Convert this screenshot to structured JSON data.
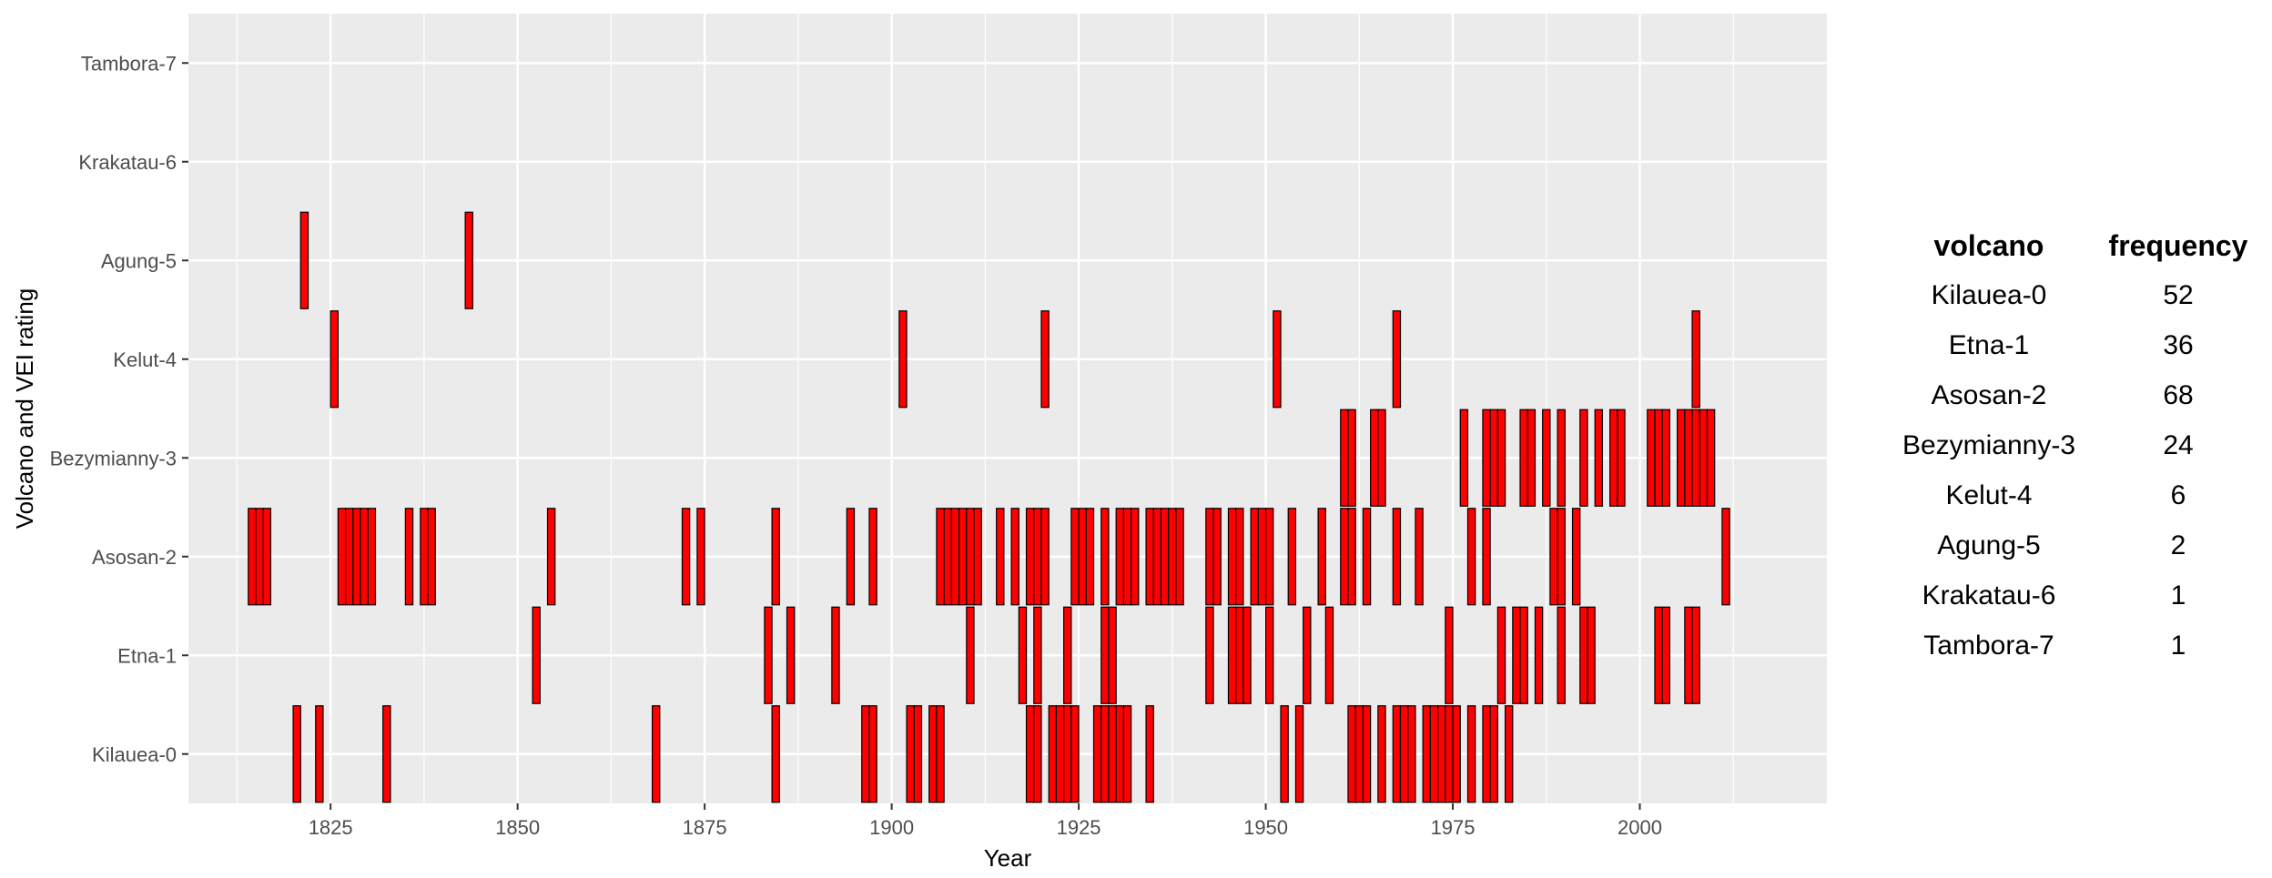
{
  "chart_data": {
    "type": "bar",
    "xlabel": "Year",
    "ylabel": "Volcano and VEI rating",
    "xlim": [
      1806,
      2025
    ],
    "x_ticks": [
      1825,
      1850,
      1875,
      1900,
      1925,
      1950,
      1975,
      2000
    ],
    "categories": [
      "Kilauea-0",
      "Etna-1",
      "Asosan-2",
      "Bezymianny-3",
      "Kelut-4",
      "Agung-5",
      "Krakatau-6",
      "Tambora-7"
    ],
    "bar_fill": "#ff0000",
    "bar_stroke": "#000000",
    "panel_bg": "#ebebeb",
    "grid_color": "#ffffff",
    "series": [
      {
        "category": "Kilauea-0",
        "years": [
          1820,
          1823,
          1832,
          1868,
          1884,
          1896,
          1897,
          1902,
          1903,
          1905,
          1906,
          1918,
          1919,
          1921,
          1922,
          1923,
          1924,
          1927,
          1928,
          1929,
          1930,
          1931,
          1934,
          1952,
          1954,
          1961,
          1962,
          1963,
          1965,
          1967,
          1968,
          1969,
          1971,
          1972,
          1973,
          1974,
          1975,
          1977,
          1979,
          1980,
          1982
        ]
      },
      {
        "category": "Etna-1",
        "years": [
          1852,
          1883,
          1886,
          1892,
          1910,
          1917,
          1919,
          1923,
          1928,
          1929,
          1942,
          1945,
          1946,
          1947,
          1950,
          1955,
          1958,
          1974,
          1981,
          1983,
          1984,
          1986,
          1989,
          1992,
          1993,
          2002,
          2003,
          2006,
          2007
        ]
      },
      {
        "category": "Asosan-2",
        "years": [
          1814,
          1815,
          1816,
          1826,
          1827,
          1828,
          1829,
          1830,
          1835,
          1837,
          1838,
          1854,
          1872,
          1874,
          1884,
          1894,
          1897,
          1906,
          1907,
          1908,
          1909,
          1910,
          1911,
          1914,
          1916,
          1918,
          1919,
          1920,
          1924,
          1925,
          1926,
          1928,
          1930,
          1931,
          1932,
          1934,
          1935,
          1936,
          1937,
          1938,
          1942,
          1943,
          1945,
          1946,
          1948,
          1949,
          1950,
          1953,
          1957,
          1960,
          1961,
          1963,
          1967,
          1970,
          1977,
          1979,
          1988,
          1989,
          1991,
          2011
        ]
      },
      {
        "category": "Bezymianny-3",
        "years": [
          1960,
          1961,
          1964,
          1965,
          1976,
          1979,
          1980,
          1981,
          1984,
          1985,
          1987,
          1989,
          1992,
          1994,
          1996,
          1997,
          2001,
          2002,
          2003,
          2005,
          2006,
          2007,
          2008,
          2009
        ]
      },
      {
        "category": "Kelut-4",
        "years": [
          1825,
          1901,
          1920,
          1951,
          1967,
          2007
        ]
      },
      {
        "category": "Agung-5",
        "years": [
          1821,
          1843
        ]
      },
      {
        "category": "Krakatau-6",
        "years": []
      },
      {
        "category": "Tambora-7",
        "years": []
      }
    ]
  },
  "frequency_table": {
    "headers": [
      "volcano",
      "frequency"
    ],
    "rows": [
      {
        "volcano": "Kilauea-0",
        "frequency": "52"
      },
      {
        "volcano": "Etna-1",
        "frequency": "36"
      },
      {
        "volcano": "Asosan-2",
        "frequency": "68"
      },
      {
        "volcano": "Bezymianny-3",
        "frequency": "24"
      },
      {
        "volcano": "Kelut-4",
        "frequency": "6"
      },
      {
        "volcano": "Agung-5",
        "frequency": "2"
      },
      {
        "volcano": "Krakatau-6",
        "frequency": "1"
      },
      {
        "volcano": "Tambora-7",
        "frequency": "1"
      }
    ]
  }
}
